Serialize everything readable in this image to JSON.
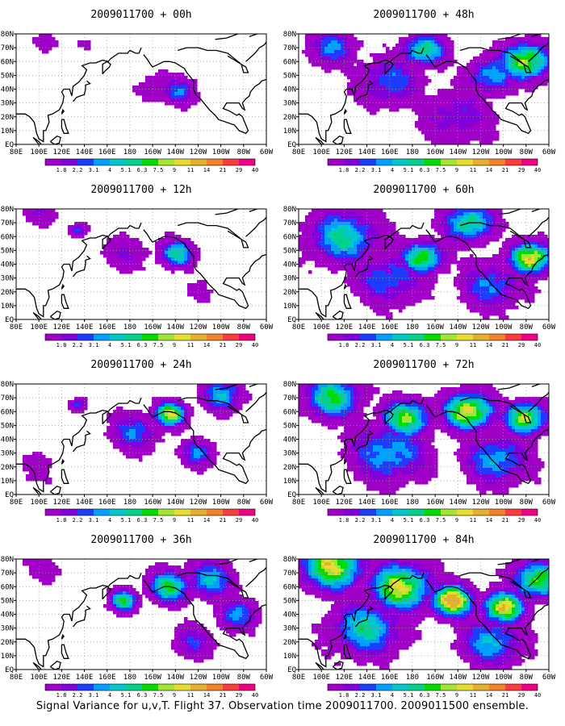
{
  "caption": "Signal Variance for u,v,T. Flight 37. Observation time 2009011700. 2009011500 ensemble.",
  "colors": {
    "palette": [
      "#ffffff",
      "#a000c8",
      "#8200dc",
      "#1e3cff",
      "#00a0ff",
      "#00c8c8",
      "#00d28c",
      "#00dc00",
      "#a0e632",
      "#e6dc32",
      "#e6af2d",
      "#f08228",
      "#fa3c3c",
      "#f00082"
    ],
    "coast": "#000000",
    "grid": "#9a9a9a",
    "frame": "#000000"
  },
  "chart_data": [
    {
      "type": "heatmap",
      "title": "2009011700 + 00h",
      "x_ticks": [
        "80E",
        "100E",
        "120E",
        "140E",
        "160E",
        "180",
        "160W",
        "140W",
        "120W",
        "100W",
        "80W",
        "60W"
      ],
      "y_ticks": [
        "EQ",
        "10N",
        "20N",
        "30N",
        "40N",
        "50N",
        "60N",
        "70N",
        "80N"
      ],
      "xlim": [
        "80E",
        "60W"
      ],
      "ylim": [
        "EQ",
        "80N"
      ],
      "colorbar": [
        "1.8",
        "2.2",
        "3.1",
        "4",
        "5.1",
        "6.3",
        "7.5",
        "9",
        "11",
        "14",
        "21",
        "29",
        "40"
      ],
      "features": [
        {
          "lon": 222,
          "lat": 38,
          "level": 4.0,
          "spread": 10
        },
        {
          "lon": 205,
          "lat": 40,
          "level": 2.0,
          "spread": 12
        },
        {
          "lon": 105,
          "lat": 75,
          "level": 1.0,
          "spread": 8
        },
        {
          "lon": 140,
          "lat": 72,
          "level": 1.0,
          "spread": 6
        }
      ]
    },
    {
      "type": "heatmap",
      "title": "2009011700 + 12h",
      "x_ticks": [
        "80E",
        "100E",
        "120E",
        "140E",
        "160E",
        "180",
        "160W",
        "140W",
        "120W",
        "100W",
        "80W",
        "60W"
      ],
      "y_ticks": [
        "EQ",
        "10N",
        "20N",
        "30N",
        "40N",
        "50N",
        "60N",
        "70N",
        "80N"
      ],
      "xlim": [
        "80E",
        "60W"
      ],
      "ylim": [
        "EQ",
        "80N"
      ],
      "colorbar": [
        "1.8",
        "2.2",
        "3.1",
        "4",
        "5.1",
        "6.3",
        "7.5",
        "9",
        "11",
        "14",
        "21",
        "29",
        "40"
      ],
      "features": [
        {
          "lon": 222,
          "lat": 48,
          "level": 6.0,
          "spread": 10
        },
        {
          "lon": 178,
          "lat": 48,
          "level": 2.0,
          "spread": 14
        },
        {
          "lon": 135,
          "lat": 65,
          "level": 4.0,
          "spread": 5
        },
        {
          "lon": 100,
          "lat": 77,
          "level": 2.0,
          "spread": 10
        },
        {
          "lon": 240,
          "lat": 20,
          "level": 1.0,
          "spread": 10
        }
      ]
    },
    {
      "type": "heatmap",
      "title": "2009011700 + 24h",
      "x_ticks": [
        "80E",
        "100E",
        "120E",
        "140E",
        "160E",
        "180",
        "160W",
        "140W",
        "120W",
        "100W",
        "80W",
        "60W"
      ],
      "y_ticks": [
        "EQ",
        "10N",
        "20N",
        "30N",
        "40N",
        "50N",
        "60N",
        "70N",
        "80N"
      ],
      "xlim": [
        "80E",
        "60W"
      ],
      "ylim": [
        "EQ",
        "80N"
      ],
      "colorbar": [
        "1.8",
        "2.2",
        "3.1",
        "4",
        "5.1",
        "6.3",
        "7.5",
        "9",
        "11",
        "14",
        "21",
        "29",
        "40"
      ],
      "features": [
        {
          "lon": 216,
          "lat": 58,
          "level": 9.0,
          "spread": 9
        },
        {
          "lon": 185,
          "lat": 45,
          "level": 4.0,
          "spread": 14
        },
        {
          "lon": 240,
          "lat": 30,
          "level": 4.0,
          "spread": 10
        },
        {
          "lon": 262,
          "lat": 72,
          "level": 5.0,
          "spread": 12
        },
        {
          "lon": 135,
          "lat": 65,
          "level": 4.0,
          "spread": 5
        },
        {
          "lon": 100,
          "lat": 20,
          "level": 1.0,
          "spread": 14
        }
      ]
    },
    {
      "type": "heatmap",
      "title": "2009011700 + 36h",
      "x_ticks": [
        "80E",
        "100E",
        "120E",
        "140E",
        "160E",
        "180",
        "160W",
        "140W",
        "120W",
        "100W",
        "80W",
        "60W"
      ],
      "y_ticks": [
        "EQ",
        "10N",
        "20N",
        "30N",
        "40N",
        "50N",
        "60N",
        "70N",
        "80N"
      ],
      "xlim": [
        "80E",
        "60W"
      ],
      "ylim": [
        "EQ",
        "80N"
      ],
      "colorbar": [
        "1.8",
        "2.2",
        "3.1",
        "4",
        "5.1",
        "6.3",
        "7.5",
        "9",
        "11",
        "14",
        "21",
        "29",
        "40"
      ],
      "features": [
        {
          "lon": 175,
          "lat": 50,
          "level": 7.0,
          "spread": 8
        },
        {
          "lon": 215,
          "lat": 60,
          "level": 7.0,
          "spread": 12
        },
        {
          "lon": 250,
          "lat": 65,
          "level": 5.0,
          "spread": 14
        },
        {
          "lon": 275,
          "lat": 40,
          "level": 4.0,
          "spread": 12
        },
        {
          "lon": 235,
          "lat": 20,
          "level": 3.0,
          "spread": 12
        },
        {
          "lon": 100,
          "lat": 72,
          "level": 1.0,
          "spread": 14
        }
      ]
    },
    {
      "type": "heatmap",
      "title": "2009011700 + 48h",
      "x_ticks": [
        "80E",
        "100E",
        "120E",
        "140E",
        "160E",
        "180",
        "160W",
        "140W",
        "120W",
        "100W",
        "80W",
        "60W"
      ],
      "y_ticks": [
        "EQ",
        "10N",
        "20N",
        "30N",
        "40N",
        "50N",
        "60N",
        "70N",
        "80N"
      ],
      "xlim": [
        "80E",
        "60W"
      ],
      "ylim": [
        "EQ",
        "80N"
      ],
      "colorbar": [
        "1.8",
        "2.2",
        "3.1",
        "4",
        "5.1",
        "6.3",
        "7.5",
        "9",
        "11",
        "14",
        "21",
        "29",
        "40"
      ],
      "features": [
        {
          "lon": 280,
          "lat": 60,
          "level": 9.0,
          "spread": 14
        },
        {
          "lon": 190,
          "lat": 68,
          "level": 7.0,
          "spread": 12
        },
        {
          "lon": 160,
          "lat": 45,
          "level": 4.0,
          "spread": 18
        },
        {
          "lon": 250,
          "lat": 50,
          "level": 5.0,
          "spread": 14
        },
        {
          "lon": 110,
          "lat": 70,
          "level": 4.0,
          "spread": 14
        },
        {
          "lon": 220,
          "lat": 20,
          "level": 3.0,
          "spread": 20
        }
      ]
    },
    {
      "type": "heatmap",
      "title": "2009011700 + 60h",
      "x_ticks": [
        "80E",
        "100E",
        "120E",
        "140E",
        "160E",
        "180",
        "160W",
        "140W",
        "120W",
        "100W",
        "80W",
        "60W"
      ],
      "y_ticks": [
        "EQ",
        "10N",
        "20N",
        "30N",
        "40N",
        "50N",
        "60N",
        "70N",
        "80N"
      ],
      "xlim": [
        "80E",
        "60W"
      ],
      "ylim": [
        "EQ",
        "80N"
      ],
      "colorbar": [
        "1.8",
        "2.2",
        "3.1",
        "4",
        "5.1",
        "6.3",
        "7.5",
        "9",
        "11",
        "14",
        "21",
        "29",
        "40"
      ],
      "features": [
        {
          "lon": 285,
          "lat": 45,
          "level": 10.0,
          "spread": 12
        },
        {
          "lon": 190,
          "lat": 45,
          "level": 8.0,
          "spread": 12
        },
        {
          "lon": 230,
          "lat": 70,
          "level": 7.0,
          "spread": 14
        },
        {
          "lon": 120,
          "lat": 60,
          "level": 6.0,
          "spread": 20
        },
        {
          "lon": 160,
          "lat": 30,
          "level": 4.0,
          "spread": 20
        },
        {
          "lon": 250,
          "lat": 25,
          "level": 4.0,
          "spread": 18
        }
      ]
    },
    {
      "type": "heatmap",
      "title": "2009011700 + 72h",
      "x_ticks": [
        "80E",
        "100E",
        "120E",
        "140E",
        "160E",
        "180",
        "160W",
        "140W",
        "120W",
        "100W",
        "80W",
        "60W"
      ],
      "y_ticks": [
        "EQ",
        "10N",
        "20N",
        "30N",
        "40N",
        "50N",
        "60N",
        "70N",
        "80N"
      ],
      "xlim": [
        "80E",
        "60W"
      ],
      "ylim": [
        "EQ",
        "80N"
      ],
      "colorbar": [
        "1.8",
        "2.2",
        "3.1",
        "4",
        "5.1",
        "6.3",
        "7.5",
        "9",
        "11",
        "14",
        "21",
        "29",
        "40"
      ],
      "features": [
        {
          "lon": 230,
          "lat": 60,
          "level": 10.0,
          "spread": 14
        },
        {
          "lon": 175,
          "lat": 55,
          "level": 8.0,
          "spread": 14
        },
        {
          "lon": 280,
          "lat": 55,
          "level": 9.0,
          "spread": 12
        },
        {
          "lon": 110,
          "lat": 70,
          "level": 7.0,
          "spread": 16
        },
        {
          "lon": 160,
          "lat": 30,
          "level": 5.0,
          "spread": 22
        },
        {
          "lon": 255,
          "lat": 25,
          "level": 5.0,
          "spread": 18
        }
      ]
    },
    {
      "type": "heatmap",
      "title": "2009011700 + 84h",
      "x_ticks": [
        "80E",
        "100E",
        "120E",
        "140E",
        "160E",
        "180",
        "160W",
        "140W",
        "120W",
        "100W",
        "80W",
        "60W"
      ],
      "y_ticks": [
        "EQ",
        "10N",
        "20N",
        "30N",
        "40N",
        "50N",
        "60N",
        "70N",
        "80N"
      ],
      "xlim": [
        "80E",
        "60W"
      ],
      "ylim": [
        "EQ",
        "80N"
      ],
      "colorbar": [
        "1.8",
        "2.2",
        "3.1",
        "4",
        "5.1",
        "6.3",
        "7.5",
        "9",
        "11",
        "14",
        "21",
        "29",
        "40"
      ],
      "features": [
        {
          "lon": 215,
          "lat": 50,
          "level": 11.0,
          "spread": 12
        },
        {
          "lon": 260,
          "lat": 45,
          "level": 10.0,
          "spread": 12
        },
        {
          "lon": 110,
          "lat": 75,
          "level": 9.0,
          "spread": 18
        },
        {
          "lon": 170,
          "lat": 60,
          "level": 9.0,
          "spread": 18
        },
        {
          "lon": 290,
          "lat": 65,
          "level": 8.0,
          "spread": 14
        },
        {
          "lon": 140,
          "lat": 30,
          "level": 6.0,
          "spread": 20
        },
        {
          "lon": 250,
          "lat": 20,
          "level": 5.0,
          "spread": 18
        }
      ]
    }
  ]
}
